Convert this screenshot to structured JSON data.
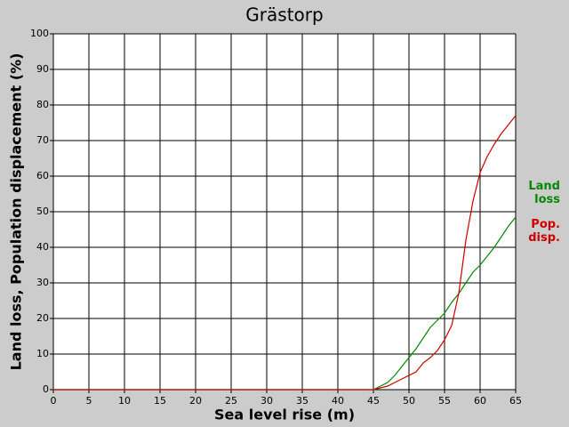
{
  "chart_data": {
    "type": "line",
    "title": "Grästorp",
    "xlabel": "Sea level rise (m)",
    "ylabel": "Land loss, Population displacement (%)",
    "x": [
      0,
      5,
      10,
      15,
      20,
      25,
      30,
      35,
      40,
      45,
      46,
      47,
      48,
      49,
      50,
      51,
      52,
      53,
      54,
      55,
      56,
      57,
      58,
      59,
      60,
      61,
      62,
      63,
      64,
      65
    ],
    "series": [
      {
        "name": "Land loss",
        "color": "#008800",
        "values": [
          0,
          0,
          0,
          0,
          0,
          0,
          0,
          0,
          0,
          0,
          1,
          2,
          4,
          6.5,
          9,
          11.5,
          14.5,
          17.5,
          19.5,
          21.5,
          24.5,
          27,
          30,
          33,
          35,
          37.5,
          40,
          43,
          46,
          48.5
        ]
      },
      {
        "name": "Pop. disp.",
        "color": "#cc0000",
        "values": [
          0,
          0,
          0,
          0,
          0,
          0,
          0,
          0,
          0,
          0,
          0.5,
          1,
          2,
          3,
          4,
          5,
          7.5,
          9,
          11,
          14,
          18,
          27,
          42,
          53,
          61,
          65.5,
          69,
          72,
          74.5,
          77
        ]
      }
    ],
    "xlim": [
      0,
      65
    ],
    "xticks": [
      0,
      5,
      10,
      15,
      20,
      25,
      30,
      35,
      40,
      45,
      50,
      55,
      60,
      65
    ],
    "ylim": [
      0,
      100
    ],
    "yticks": [
      0,
      10,
      20,
      30,
      40,
      50,
      60,
      70,
      80,
      90,
      100
    ],
    "grid": true
  }
}
